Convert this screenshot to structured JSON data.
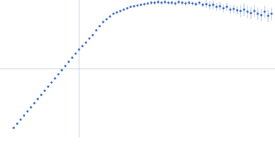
{
  "chart_data": {
    "type": "scatter",
    "color": "#3a6bc6",
    "error_color": "#a8bfe6",
    "grid_color": "#c8d4e4",
    "xlim": [
      0,
      400
    ],
    "ylim": [
      0,
      200
    ],
    "xgrid": [
      115
    ],
    "ygrid": [
      100
    ],
    "x": [
      20,
      25,
      30,
      35,
      40,
      45,
      50,
      55,
      60,
      65,
      70,
      75,
      80,
      85,
      90,
      95,
      100,
      105,
      110,
      115,
      120,
      125,
      130,
      135,
      140,
      145,
      150,
      155,
      160,
      165,
      170,
      175,
      180,
      185,
      190,
      195,
      200,
      205,
      210,
      215,
      220,
      225,
      230,
      235,
      240,
      245,
      250,
      255,
      260,
      265,
      270,
      275,
      280,
      285,
      290,
      295,
      300,
      305,
      310,
      315,
      320,
      325,
      330,
      335,
      340,
      345,
      350,
      355,
      360,
      365,
      370,
      375,
      380,
      385,
      390,
      395
    ],
    "y": [
      14,
      20,
      26,
      32,
      38,
      44,
      50,
      56,
      62,
      68,
      74,
      80,
      86,
      92,
      98,
      104,
      110,
      116,
      122,
      128,
      133,
      138,
      144,
      149,
      156,
      162,
      168,
      172,
      176,
      180,
      182,
      184,
      186,
      188,
      190,
      191,
      192,
      193,
      194,
      195,
      196,
      196,
      197,
      196,
      197,
      196,
      196,
      195,
      197,
      196,
      195,
      196,
      195,
      194,
      196,
      193,
      194,
      192,
      193,
      190,
      191,
      188,
      190,
      186,
      187,
      185,
      184,
      186,
      183,
      181,
      184,
      180,
      178,
      183,
      177,
      180
    ],
    "errors": [
      1,
      1,
      1,
      1,
      1,
      1,
      1,
      1,
      1,
      1,
      1,
      1,
      1,
      1,
      1,
      1,
      1,
      1,
      1,
      1,
      1.5,
      1.5,
      1.5,
      1.5,
      1.5,
      1.5,
      1.5,
      1.5,
      1.5,
      1.5,
      1.5,
      1.5,
      1.5,
      1.5,
      1.5,
      1.5,
      1.5,
      1.5,
      1.5,
      1.5,
      3,
      3,
      3,
      3,
      3,
      3,
      3,
      3,
      3,
      3,
      3,
      3,
      3,
      3,
      3,
      3,
      6,
      6,
      6,
      6,
      6,
      6,
      6,
      6,
      6,
      6,
      9,
      9,
      9,
      9,
      9,
      9,
      9,
      9,
      9,
      9
    ]
  }
}
